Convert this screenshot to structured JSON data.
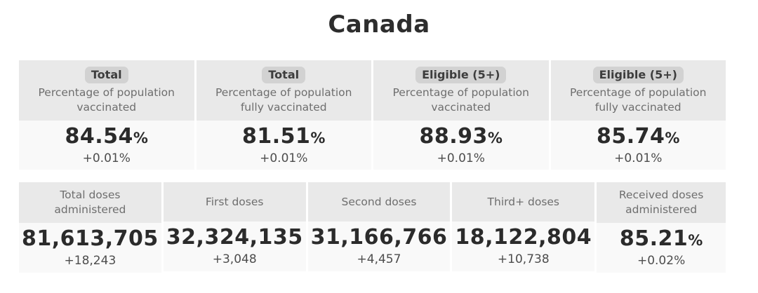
{
  "title": "Canada",
  "top_cards": [
    {
      "badge": "Total",
      "label": "Percentage of population vaccinated",
      "value": "84.54",
      "unit": "%",
      "delta": "+0.01%"
    },
    {
      "badge": "Total",
      "label": "Percentage of population fully vaccinated",
      "value": "81.51",
      "unit": "%",
      "delta": "+0.01%"
    },
    {
      "badge": "Eligible (5+)",
      "label": "Percentage of population vaccinated",
      "value": "88.93",
      "unit": "%",
      "delta": "+0.01%"
    },
    {
      "badge": "Eligible (5+)",
      "label": "Percentage of population fully vaccinated",
      "value": "85.74",
      "unit": "%",
      "delta": "+0.01%"
    }
  ],
  "bottom_cards": [
    {
      "label": "Total doses administered",
      "value": "81,613,705",
      "unit": "",
      "delta": "+18,243"
    },
    {
      "label": "First doses",
      "value": "32,324,135",
      "unit": "",
      "delta": "+3,048"
    },
    {
      "label": "Second doses",
      "value": "31,166,766",
      "unit": "",
      "delta": "+4,457"
    },
    {
      "label": "Third+ doses",
      "value": "18,122,804",
      "unit": "",
      "delta": "+10,738"
    },
    {
      "label": "Received doses administered",
      "value": "85.21",
      "unit": "%",
      "delta": "+0.02%"
    }
  ],
  "colors": {
    "page_bg": "#ffffff",
    "header_bg": "#e9e9e9",
    "badge_bg": "#d2d2d2",
    "value_bg": "#f9f9f9",
    "title_text": "#2d2d2d",
    "label_text": "#6e6e6e",
    "value_text": "#2b2b2b",
    "delta_text": "#4d4d4d"
  }
}
